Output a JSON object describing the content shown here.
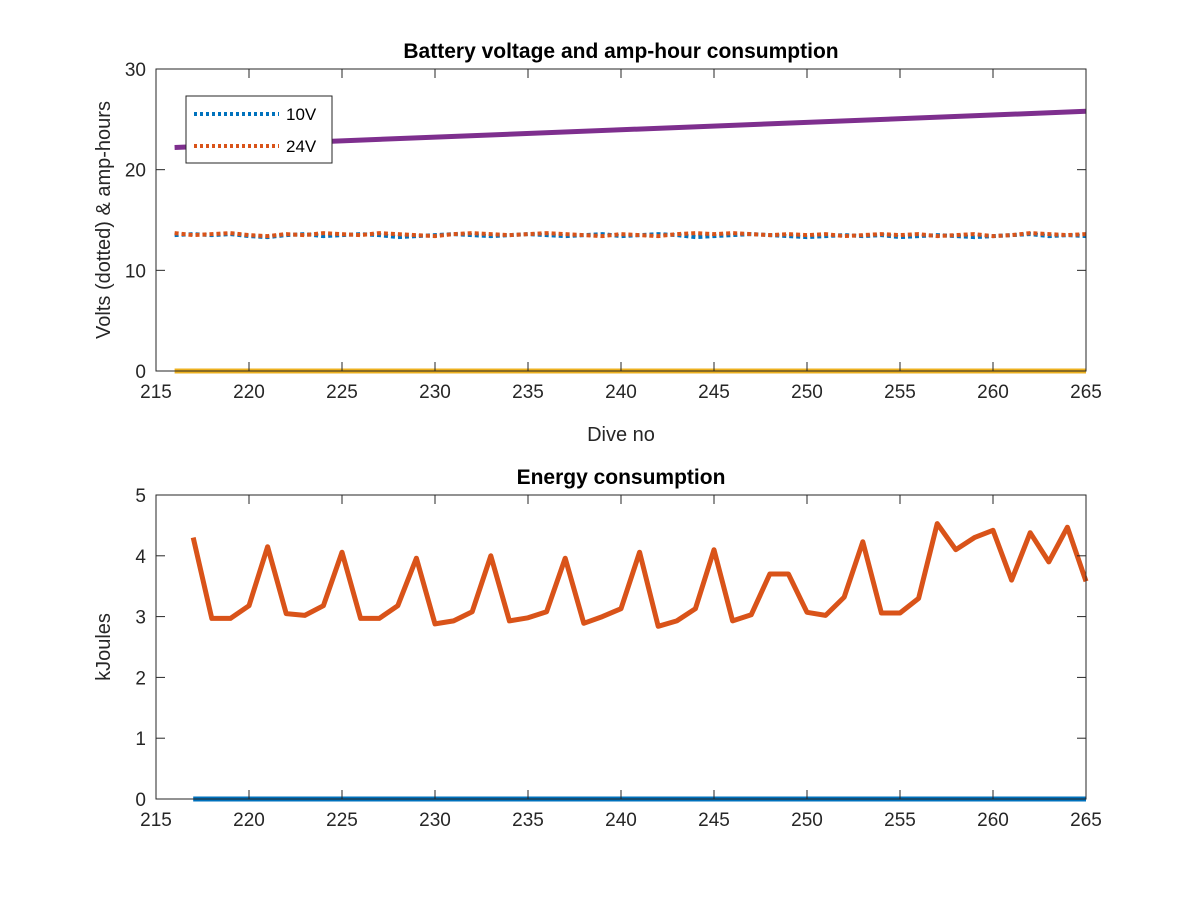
{
  "chart_data": [
    {
      "type": "line",
      "title": "Battery voltage and amp-hour consumption",
      "xlabel": "Dive no",
      "ylabel": "Volts (dotted) & amp-hours",
      "xlim": [
        215,
        265
      ],
      "ylim": [
        0,
        30
      ],
      "xticks": [
        215,
        220,
        225,
        230,
        235,
        240,
        245,
        250,
        255,
        260,
        265
      ],
      "yticks": [
        0,
        10,
        20,
        30
      ],
      "grid": false,
      "legend_placement": "top-left",
      "series": [
        {
          "name": "10V",
          "style": "dotted",
          "color": "#0072BD",
          "x": [
            216,
            217,
            218,
            219,
            220,
            221,
            222,
            223,
            224,
            225,
            226,
            227,
            228,
            229,
            230,
            231,
            232,
            233,
            234,
            235,
            236,
            237,
            238,
            239,
            240,
            241,
            242,
            243,
            244,
            245,
            246,
            247,
            248,
            249,
            250,
            251,
            252,
            253,
            254,
            255,
            256,
            257,
            258,
            259,
            260,
            261,
            262,
            263,
            264,
            265
          ],
          "values": [
            13.5,
            13.6,
            13.5,
            13.6,
            13.4,
            13.3,
            13.5,
            13.6,
            13.4,
            13.5,
            13.6,
            13.5,
            13.3,
            13.4,
            13.5,
            13.6,
            13.5,
            13.4,
            13.5,
            13.6,
            13.5,
            13.4,
            13.5,
            13.6,
            13.4,
            13.5,
            13.6,
            13.5,
            13.3,
            13.4,
            13.5,
            13.6,
            13.5,
            13.4,
            13.3,
            13.4,
            13.5,
            13.4,
            13.5,
            13.3,
            13.4,
            13.5,
            13.4,
            13.3,
            13.4,
            13.5,
            13.6,
            13.4,
            13.5,
            13.4
          ]
        },
        {
          "name": "24V",
          "style": "dotted",
          "color": "#D95319",
          "x": [
            216,
            217,
            218,
            219,
            220,
            221,
            222,
            223,
            224,
            225,
            226,
            227,
            228,
            229,
            230,
            231,
            232,
            233,
            234,
            235,
            236,
            237,
            238,
            239,
            240,
            241,
            242,
            243,
            244,
            245,
            246,
            247,
            248,
            249,
            250,
            251,
            252,
            253,
            254,
            255,
            256,
            257,
            258,
            259,
            260,
            261,
            262,
            263,
            264,
            265
          ],
          "values": [
            13.7,
            13.5,
            13.6,
            13.7,
            13.5,
            13.4,
            13.6,
            13.5,
            13.7,
            13.6,
            13.5,
            13.7,
            13.6,
            13.5,
            13.4,
            13.6,
            13.7,
            13.6,
            13.5,
            13.6,
            13.7,
            13.6,
            13.5,
            13.4,
            13.6,
            13.5,
            13.4,
            13.6,
            13.7,
            13.6,
            13.7,
            13.6,
            13.5,
            13.6,
            13.5,
            13.6,
            13.4,
            13.5,
            13.6,
            13.5,
            13.6,
            13.4,
            13.5,
            13.6,
            13.4,
            13.5,
            13.7,
            13.6,
            13.5,
            13.6
          ]
        },
        {
          "style": "solid",
          "color": "#EDB120",
          "x": [
            216,
            265
          ],
          "values": [
            0,
            0
          ]
        },
        {
          "style": "solid",
          "color": "#7E2F8E",
          "x": [
            216,
            265
          ],
          "values": [
            22.2,
            25.8
          ]
        }
      ]
    },
    {
      "type": "line",
      "title": "Energy consumption",
      "xlabel": "",
      "ylabel": "kJoules",
      "xlim": [
        215,
        265
      ],
      "ylim": [
        0,
        5
      ],
      "xticks": [
        215,
        220,
        225,
        230,
        235,
        240,
        245,
        250,
        255,
        260,
        265
      ],
      "yticks": [
        0,
        1,
        2,
        3,
        4,
        5
      ],
      "grid": false,
      "series": [
        {
          "style": "solid",
          "color": "#D95319",
          "x": [
            217,
            218,
            219,
            220,
            221,
            222,
            223,
            224,
            225,
            226,
            227,
            228,
            229,
            230,
            231,
            232,
            233,
            234,
            235,
            236,
            237,
            238,
            239,
            240,
            241,
            242,
            243,
            244,
            245,
            246,
            247,
            248,
            249,
            250,
            251,
            252,
            253,
            254,
            255,
            256,
            257,
            258,
            259,
            260,
            261,
            262,
            263,
            264,
            265
          ],
          "values": [
            4.3,
            2.97,
            2.97,
            3.18,
            4.15,
            3.05,
            3.02,
            3.18,
            4.06,
            2.97,
            2.97,
            3.18,
            3.96,
            2.88,
            2.93,
            3.08,
            4.0,
            2.93,
            2.98,
            3.08,
            3.96,
            2.89,
            3.0,
            3.13,
            4.06,
            2.84,
            2.93,
            3.13,
            4.1,
            2.93,
            3.03,
            3.7,
            3.7,
            3.07,
            3.02,
            3.32,
            4.23,
            3.06,
            3.06,
            3.3,
            4.53,
            4.1,
            4.3,
            4.42,
            3.6,
            4.38,
            3.9,
            4.47,
            3.58
          ]
        },
        {
          "style": "solid",
          "color": "#0072BD",
          "x": [
            217,
            265
          ],
          "values": [
            0,
            0
          ]
        }
      ]
    }
  ]
}
